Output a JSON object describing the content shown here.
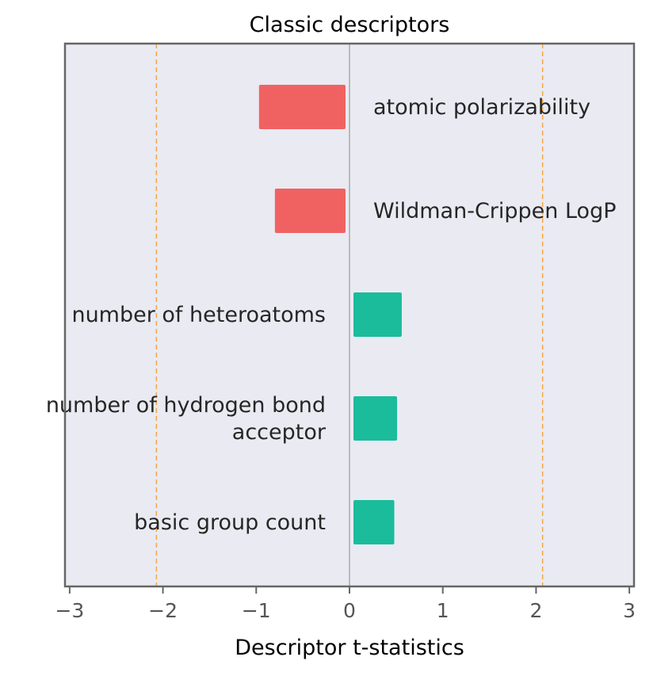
{
  "chart_data": {
    "type": "bar",
    "orientation": "horizontal",
    "title": "Classic descriptors",
    "xlabel": "Descriptor t-statistics",
    "ylabel": "",
    "xlim": [
      -3.05,
      3.05
    ],
    "x_ticks": [
      -3,
      -2,
      -1,
      0,
      1,
      2,
      3
    ],
    "x_tick_labels": [
      "−3",
      "−2",
      "−1",
      "0",
      "1",
      "2",
      "3"
    ],
    "categories": [
      "atomic polarizability",
      "Wildman-Crippen LogP",
      "number of heteroatoms",
      "number of hydrogen bond acceptor",
      "basic group count"
    ],
    "category_label_lines": [
      [
        "atomic polarizability"
      ],
      [
        "Wildman-Crippen LogP"
      ],
      [
        "number of heteroatoms"
      ],
      [
        "number of hydrogen bond",
        "acceptor"
      ],
      [
        "basic group count"
      ]
    ],
    "values": [
      -0.97,
      -0.8,
      0.56,
      0.51,
      0.48
    ],
    "reference_lines": [
      -2.07,
      2.07
    ],
    "grid": false,
    "legend": "none",
    "colors": {
      "negative": "#f06262",
      "positive": "#1abc9c",
      "background": "#eaeaf2",
      "frame": "#666666",
      "zero_line": "#999999",
      "reference_line": "#f5a742",
      "text": "#262626",
      "tick_text": "#555555"
    }
  }
}
